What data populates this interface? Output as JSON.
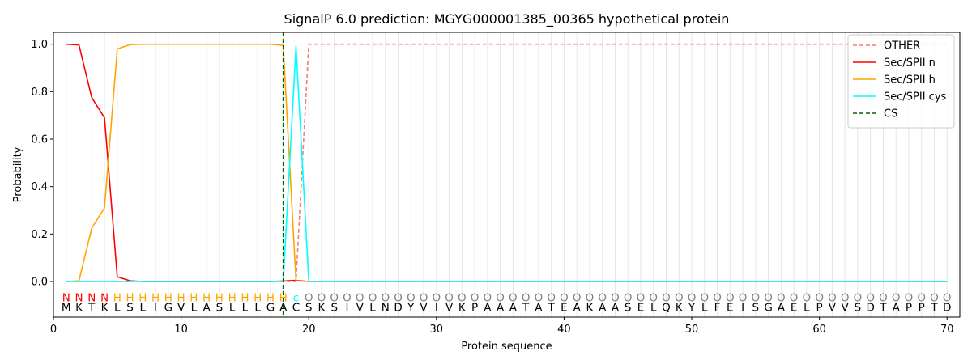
{
  "chart_data": {
    "type": "line",
    "title": "SignalP 6.0 prediction: MGYG000001385_00365 hypothetical protein",
    "xlabel": "Protein sequence",
    "ylabel": "Probability",
    "xlim": [
      0,
      71
    ],
    "ylim": [
      -0.15,
      1.05
    ],
    "x_ticks": [
      0,
      10,
      20,
      30,
      40,
      50,
      60,
      70
    ],
    "x_tick_labels": [
      "0",
      "10",
      "20",
      "30",
      "40",
      "50",
      "60",
      "70"
    ],
    "y_ticks": [
      0.0,
      0.2,
      0.4,
      0.6,
      0.8,
      1.0
    ],
    "y_tick_labels": [
      "0.0",
      "0.2",
      "0.4",
      "0.6",
      "0.8",
      "1.0"
    ],
    "grid": "vertical lines at each residue position",
    "legend_position": "top-right",
    "sequence": "MKTKLSLIGVLASLLLGACSKSIVLNDYVIVKPAAATATEAKAASELQKYLFEISGAELPVVSDTAPPTD",
    "labels": "NNNNHHHHHHHHHHHHHHcOOOOOOOOOOOOOOOOOOOOOOOOOOOOOOOOOOOOOOOOOOOOOOOOOOO",
    "label_colors": {
      "N": "#ff0000",
      "H": "#ffa500",
      "c": "#00ffff",
      "O": "#808080"
    },
    "cleavage_site": 18,
    "series": [
      {
        "name": "OTHER",
        "color": "#f08080",
        "dash": "dashed",
        "values": [
          0,
          0,
          0,
          0,
          0,
          0,
          0,
          0,
          0,
          0,
          0,
          0,
          0,
          0,
          0,
          0,
          0,
          0,
          0.0,
          1.0,
          1,
          1,
          1,
          1,
          1,
          1,
          1,
          1,
          1,
          1,
          1,
          1,
          1,
          1,
          1,
          1,
          1,
          1,
          1,
          1,
          1,
          1,
          1,
          1,
          1,
          1,
          1,
          1,
          1,
          1,
          1,
          1,
          1,
          1,
          1,
          1,
          1,
          1,
          1,
          1,
          1,
          1,
          1,
          1,
          1,
          1,
          1,
          1,
          1,
          1
        ]
      },
      {
        "name": "Sec/SPII n",
        "color": "#ff0000",
        "dash": "solid",
        "values": [
          1.0,
          0.997,
          0.775,
          0.69,
          0.02,
          0.003,
          0,
          0,
          0,
          0,
          0,
          0,
          0,
          0,
          0,
          0,
          0,
          0.002,
          0.005,
          0,
          0,
          0,
          0,
          0,
          0,
          0,
          0,
          0,
          0,
          0,
          0,
          0,
          0,
          0,
          0,
          0,
          0,
          0,
          0,
          0,
          0,
          0,
          0,
          0,
          0,
          0,
          0,
          0,
          0,
          0,
          0,
          0,
          0,
          0,
          0,
          0,
          0,
          0,
          0,
          0,
          0,
          0,
          0,
          0,
          0,
          0,
          0,
          0,
          0,
          0
        ]
      },
      {
        "name": "Sec/SPII h",
        "color": "#ffa500",
        "dash": "solid",
        "values": [
          0,
          0.003,
          0.225,
          0.31,
          0.98,
          0.998,
          1.0,
          1.0,
          1.0,
          1.0,
          1.0,
          1.0,
          1.0,
          1.0,
          1.0,
          1.0,
          1.0,
          0.995,
          0.003,
          0,
          0,
          0,
          0,
          0,
          0,
          0,
          0,
          0,
          0,
          0,
          0,
          0,
          0,
          0,
          0,
          0,
          0,
          0,
          0,
          0,
          0,
          0,
          0,
          0,
          0,
          0,
          0,
          0,
          0,
          0,
          0,
          0,
          0,
          0,
          0,
          0,
          0,
          0,
          0,
          0,
          0,
          0,
          0,
          0,
          0,
          0,
          0,
          0,
          0,
          0
        ]
      },
      {
        "name": "Sec/SPII cys",
        "color": "#00ffff",
        "dash": "solid",
        "values": [
          0,
          0,
          0,
          0,
          0,
          0,
          0,
          0,
          0,
          0,
          0,
          0,
          0,
          0,
          0,
          0,
          0,
          0,
          0.992,
          0,
          0,
          0,
          0,
          0,
          0,
          0,
          0,
          0,
          0,
          0,
          0,
          0,
          0,
          0,
          0,
          0,
          0,
          0,
          0,
          0,
          0,
          0,
          0,
          0,
          0,
          0,
          0,
          0,
          0,
          0,
          0,
          0,
          0,
          0,
          0,
          0,
          0,
          0,
          0,
          0,
          0,
          0,
          0,
          0,
          0,
          0,
          0,
          0,
          0,
          0
        ]
      },
      {
        "name": "CS",
        "color": "#006400",
        "dash": "dashed",
        "values": []
      }
    ]
  }
}
